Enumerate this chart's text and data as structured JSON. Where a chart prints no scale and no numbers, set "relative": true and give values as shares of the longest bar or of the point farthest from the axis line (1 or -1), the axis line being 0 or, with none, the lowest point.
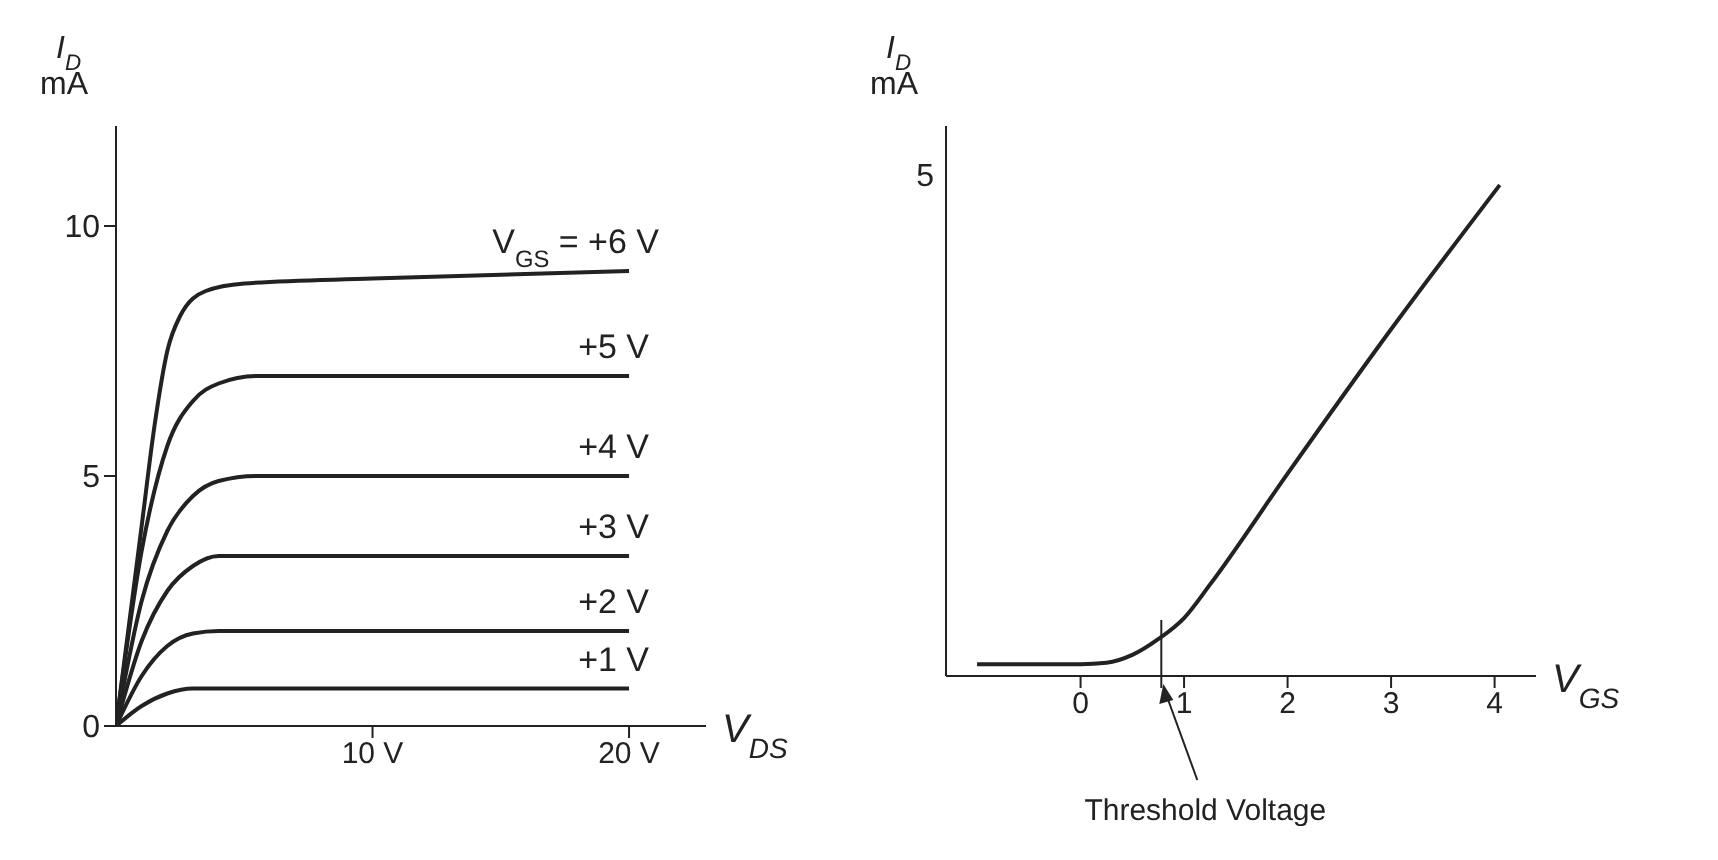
{
  "chart_data": [
    {
      "type": "line",
      "xlabel": "V$_{DS}$",
      "ylabel": "I$_{D}$ mA",
      "xlim": [
        0,
        23
      ],
      "ylim": [
        0,
        12
      ],
      "xticks": [
        {
          "value": 10,
          "label": "10 V"
        },
        {
          "value": 20,
          "label": "20 V"
        }
      ],
      "yticks": [
        0,
        5,
        10
      ],
      "grid": false,
      "legend": false,
      "marker": "none",
      "line_style": "solid",
      "series": [
        {
          "name": "V$_{GS}$ = +6 V",
          "color": "#222222",
          "x": [
            0,
            1,
            1.5,
            2,
            2.5,
            3.5,
            5,
            10,
            20
          ],
          "values": [
            0,
            4,
            6,
            7.5,
            8.2,
            8.7,
            8.85,
            8.95,
            9.1
          ]
        },
        {
          "name": "+5 V",
          "color": "#222222",
          "x": [
            0,
            1,
            2,
            3,
            4,
            5.5,
            20
          ],
          "values": [
            0,
            3.5,
            5.6,
            6.5,
            6.85,
            7,
            7
          ]
        },
        {
          "name": "+4 V",
          "color": "#222222",
          "x": [
            0,
            1,
            2,
            3,
            4,
            5.5,
            20
          ],
          "values": [
            0,
            2.5,
            3.9,
            4.6,
            4.9,
            5,
            5
          ]
        },
        {
          "name": "+3 V",
          "color": "#222222",
          "x": [
            0,
            1,
            2,
            3,
            4,
            20
          ],
          "values": [
            0,
            1.7,
            2.7,
            3.2,
            3.4,
            3.4
          ]
        },
        {
          "name": "+2 V",
          "color": "#222222",
          "x": [
            0,
            1,
            2,
            3,
            4,
            20
          ],
          "values": [
            0,
            1,
            1.6,
            1.85,
            1.9,
            1.9
          ]
        },
        {
          "name": "+1 V",
          "color": "#222222",
          "x": [
            0,
            1,
            2,
            3,
            20
          ],
          "values": [
            0,
            0.4,
            0.65,
            0.75,
            0.75
          ]
        }
      ]
    },
    {
      "type": "line",
      "xlabel": "V$_{GS}$",
      "ylabel": "I$_{D}$ mA",
      "xlim": [
        -1.3,
        4.4
      ],
      "xticks": [
        0,
        1,
        2,
        3,
        4
      ],
      "relative": true,
      "grid": false,
      "legend": false,
      "marker": "none",
      "line_style": "solid",
      "series": [
        {
          "color": "#222222",
          "x": [
            -1,
            0,
            0.25,
            0.5,
            0.75,
            1,
            1.25,
            2,
            3,
            4.05
          ],
          "values": [
            0.024,
            0.024,
            0.027,
            0.043,
            0.075,
            0.118,
            0.186,
            0.412,
            0.706,
            1
          ]
        }
      ],
      "ref_lines": [
        {
          "axis": "x",
          "value": 0.78,
          "label": "Threshold Voltage",
          "color": "#222222"
        }
      ],
      "annotations": [
        "5"
      ]
    }
  ]
}
